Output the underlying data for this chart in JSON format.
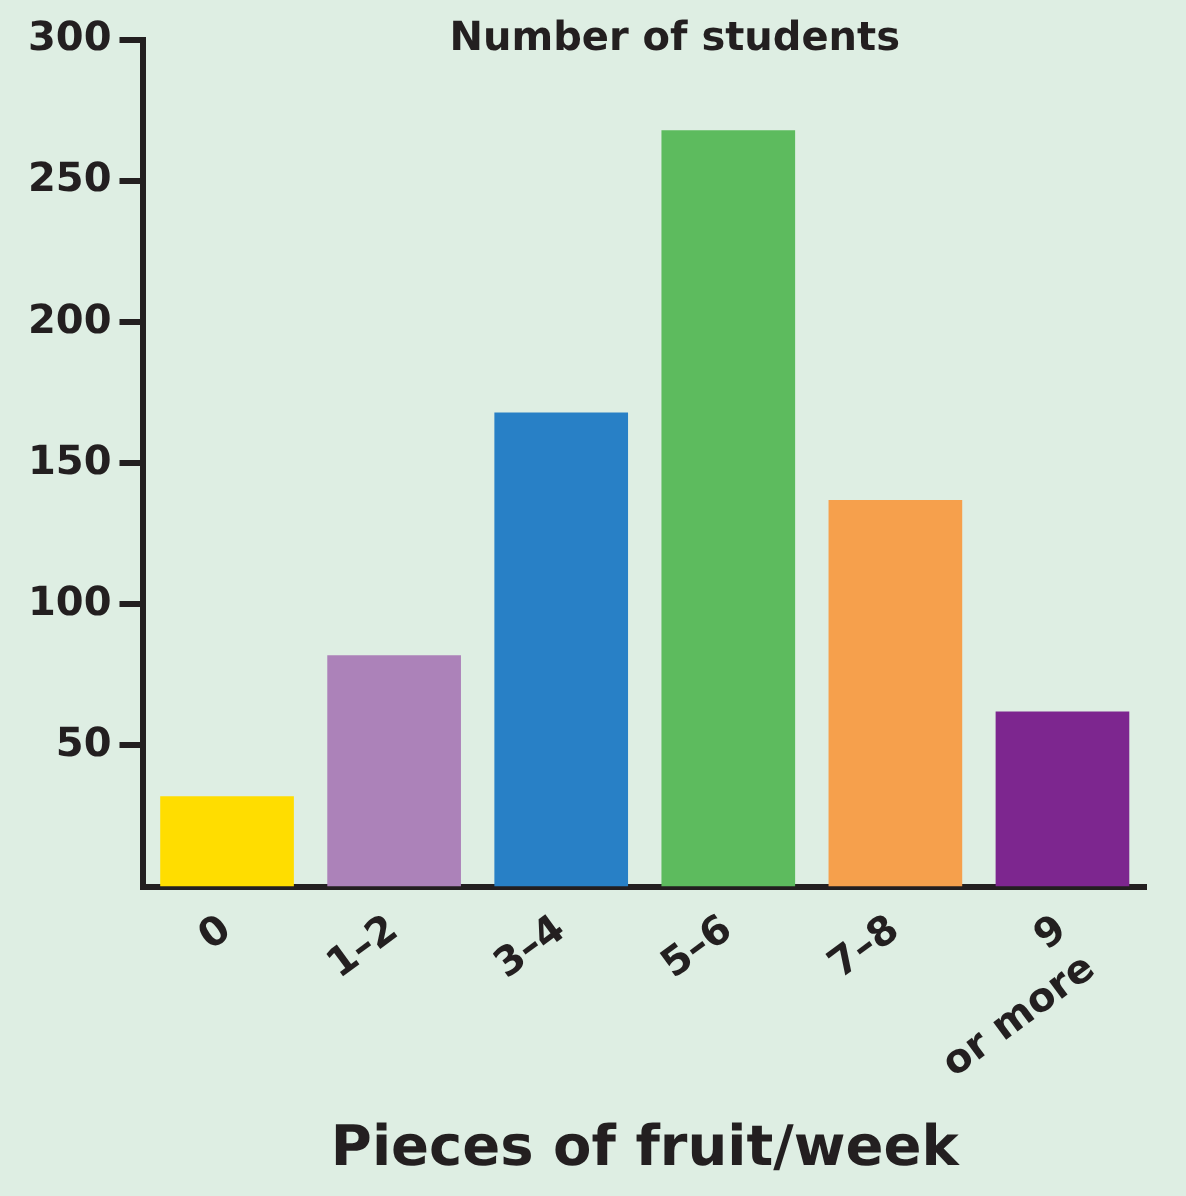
{
  "chart_data": {
    "type": "bar",
    "ylabel": "Number of students",
    "xlabel": "Pieces of fruit/week",
    "categories": [
      "0",
      "1–2",
      "3–4",
      "5–6",
      "7–8",
      "9\nor more"
    ],
    "values": [
      32,
      82,
      168,
      268,
      137,
      62
    ],
    "colors": [
      "#ffdd00",
      "#ac82b9",
      "#2880c6",
      "#5dbb5e",
      "#f6a04c",
      "#7d268f"
    ],
    "ylim": [
      0,
      300
    ],
    "yticks": [
      50,
      100,
      150,
      200,
      250,
      300
    ],
    "grid": false,
    "legend": false
  }
}
